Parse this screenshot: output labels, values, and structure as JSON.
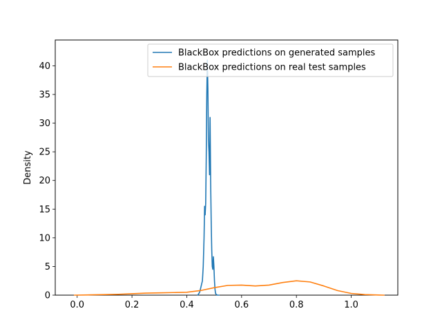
{
  "chart_data": {
    "type": "line",
    "title": "",
    "xlabel": "",
    "ylabel": "Density",
    "xlim": [
      -0.08,
      1.17
    ],
    "ylim": [
      0,
      44.5
    ],
    "xticks": [
      0.0,
      0.2,
      0.4,
      0.6,
      0.8,
      1.0
    ],
    "xtick_labels": [
      "0.0",
      "0.2",
      "0.4",
      "0.6",
      "0.8",
      "1.0"
    ],
    "yticks": [
      0,
      5,
      10,
      15,
      20,
      25,
      30,
      35,
      40
    ],
    "ytick_labels": [
      "0",
      "5",
      "10",
      "15",
      "20",
      "25",
      "30",
      "35",
      "40"
    ],
    "grid": false,
    "legend_position": "upper right",
    "series": [
      {
        "name": "BlackBox predictions on generated samples",
        "color": "#1f77b4",
        "x": [
          0.44,
          0.447,
          0.452,
          0.457,
          0.46,
          0.463,
          0.465,
          0.467,
          0.469,
          0.471,
          0.473,
          0.475,
          0.477,
          0.479,
          0.481,
          0.483,
          0.485,
          0.487,
          0.489,
          0.491,
          0.493,
          0.495,
          0.497,
          0.499,
          0.501,
          0.503,
          0.505,
          0.508,
          0.512,
          0.518
        ],
        "y": [
          0,
          0.5,
          1.5,
          2.5,
          5,
          10,
          15.5,
          14,
          16,
          24,
          35,
          41,
          36,
          27,
          25,
          21,
          31,
          20,
          13,
          8,
          5,
          4.5,
          6.7,
          5,
          2.5,
          1,
          0.3,
          0.1,
          0,
          0
        ]
      },
      {
        "name": "BlackBox predictions on real test samples",
        "color": "#ff7f0e",
        "x": [
          -0.01,
          0.05,
          0.1,
          0.15,
          0.2,
          0.25,
          0.3,
          0.35,
          0.4,
          0.45,
          0.5,
          0.55,
          0.6,
          0.65,
          0.7,
          0.75,
          0.8,
          0.85,
          0.9,
          0.95,
          1.0,
          1.05,
          1.1,
          1.12
        ],
        "y": [
          0,
          0.05,
          0.1,
          0.15,
          0.25,
          0.35,
          0.4,
          0.45,
          0.5,
          0.8,
          1.3,
          1.7,
          1.75,
          1.6,
          1.75,
          2.2,
          2.5,
          2.3,
          1.6,
          0.8,
          0.3,
          0.1,
          0.02,
          0
        ]
      }
    ]
  }
}
